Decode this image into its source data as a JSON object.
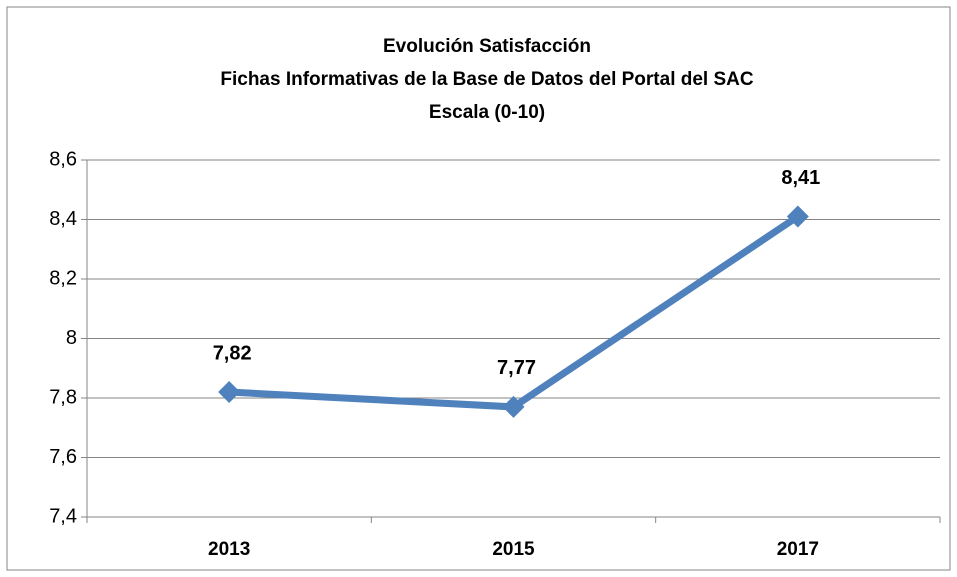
{
  "chart_data": {
    "type": "line",
    "title": [
      "Evolución Satisfacción",
      "Fichas Informativas de la Base de Datos del Portal del SAC",
      "Escala (0-10)"
    ],
    "categories": [
      "2013",
      "2015",
      "2017"
    ],
    "values": [
      7.82,
      7.77,
      8.41
    ],
    "value_labels": [
      "7,82",
      "7,77",
      "8,41"
    ],
    "color": "#4f81bd",
    "ylim": [
      7.4,
      8.6
    ],
    "yticks": [
      {
        "value": 7.4,
        "label": "7,4"
      },
      {
        "value": 7.6,
        "label": "7,6"
      },
      {
        "value": 7.8,
        "label": "7,8"
      },
      8,
      {
        "value": 8.2,
        "label": "8,2"
      },
      {
        "value": 8.4,
        "label": "8,4"
      },
      {
        "value": 8.6,
        "label": "8,6"
      }
    ],
    "grid": true
  }
}
